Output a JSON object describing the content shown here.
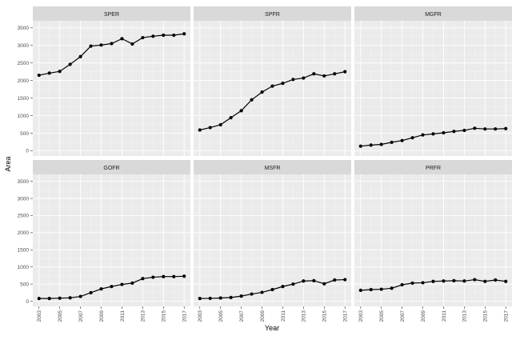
{
  "chart_data": {
    "type": "line",
    "facet_layout": "3 columns x 2 rows",
    "xlabel": "Year",
    "ylabel": "Area",
    "x": [
      2003,
      2004,
      2005,
      2006,
      2007,
      2008,
      2009,
      2010,
      2011,
      2012,
      2013,
      2014,
      2015,
      2016,
      2017
    ],
    "xticks": [
      "2003",
      "2005",
      "2007",
      "2009",
      "2011",
      "2013",
      "2015",
      "2017"
    ],
    "yticks": [
      "0",
      "500",
      "1000",
      "1500",
      "2000",
      "2500",
      "3000",
      "3500"
    ],
    "ylim": [
      -150,
      3700
    ],
    "xlim": [
      2002.4,
      2017.6
    ],
    "grid": true,
    "colors": {
      "panel": "#ebebeb",
      "strip": "#d9d9d9",
      "line": "#000000"
    },
    "series": [
      {
        "name": "SPER",
        "values": [
          2150,
          2210,
          2260,
          2460,
          2680,
          2980,
          3010,
          3050,
          3190,
          3040,
          3220,
          3260,
          3290,
          3290,
          3330
        ]
      },
      {
        "name": "SPFR",
        "values": [
          590,
          660,
          740,
          940,
          1140,
          1450,
          1670,
          1840,
          1920,
          2030,
          2070,
          2190,
          2130,
          2190,
          2250
        ]
      },
      {
        "name": "MGFR",
        "values": [
          130,
          160,
          180,
          240,
          290,
          370,
          450,
          480,
          510,
          550,
          580,
          640,
          620,
          620,
          630
        ]
      },
      {
        "name": "GOFR",
        "values": [
          80,
          80,
          90,
          100,
          140,
          250,
          360,
          430,
          490,
          530,
          660,
          700,
          720,
          720,
          730
        ]
      },
      {
        "name": "MSFR",
        "values": [
          80,
          85,
          95,
          110,
          150,
          210,
          260,
          340,
          430,
          500,
          590,
          600,
          510,
          620,
          630
        ]
      },
      {
        "name": "PRFR",
        "values": [
          320,
          340,
          350,
          380,
          480,
          530,
          540,
          580,
          590,
          600,
          590,
          630,
          580,
          620,
          580
        ]
      }
    ]
  }
}
